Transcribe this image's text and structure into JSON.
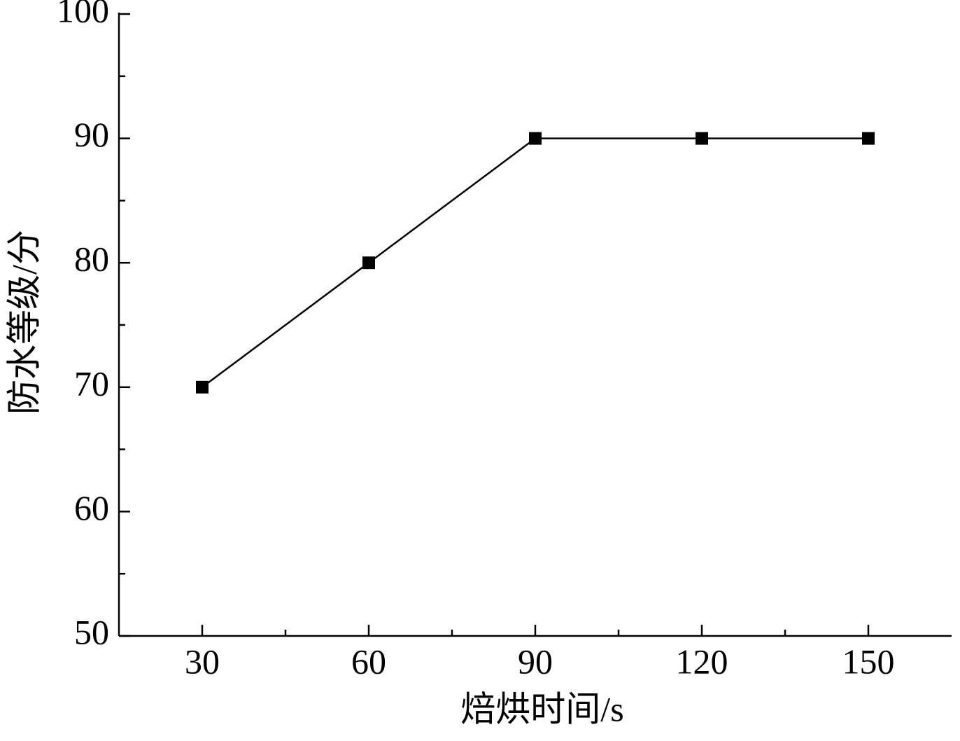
{
  "chart_data": {
    "type": "line",
    "x_label": "焙烘时间/s",
    "y_label": "防水等级/分",
    "x": [
      30,
      60,
      90,
      120,
      150
    ],
    "series": [
      {
        "color": "#000000",
        "values": [
          70,
          80,
          90,
          90,
          90
        ]
      }
    ],
    "xlim": [
      15,
      165
    ],
    "xticks": [
      30,
      60,
      90,
      120,
      150
    ],
    "ylim": [
      50,
      100
    ],
    "yticks": [
      50,
      60,
      70,
      80,
      90,
      100
    ],
    "grid": false
  }
}
